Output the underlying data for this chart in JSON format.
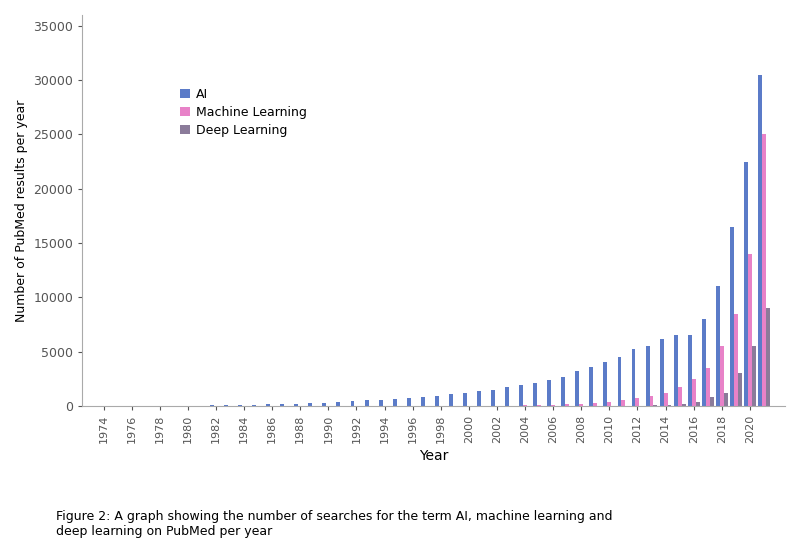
{
  "years": [
    1974,
    1975,
    1976,
    1977,
    1978,
    1979,
    1980,
    1981,
    1982,
    1983,
    1984,
    1985,
    1986,
    1987,
    1988,
    1989,
    1990,
    1991,
    1992,
    1993,
    1994,
    1995,
    1996,
    1997,
    1998,
    1999,
    2000,
    2001,
    2002,
    2003,
    2004,
    2005,
    2006,
    2007,
    2008,
    2009,
    2010,
    2011,
    2012,
    2013,
    2014,
    2015,
    2016,
    2017,
    2018,
    2019,
    2020,
    2021
  ],
  "AI": [
    5,
    8,
    10,
    12,
    15,
    20,
    30,
    35,
    50,
    60,
    80,
    100,
    130,
    160,
    200,
    250,
    300,
    380,
    450,
    500,
    580,
    650,
    750,
    850,
    950,
    1100,
    1200,
    1350,
    1500,
    1700,
    1900,
    2100,
    2400,
    2700,
    3200,
    3600,
    4000,
    4500,
    5200,
    5500,
    6200,
    6500,
    6500,
    8000,
    11000,
    16500,
    22500,
    30500
  ],
  "machine_learning": [
    0,
    0,
    0,
    0,
    0,
    0,
    0,
    0,
    0,
    0,
    0,
    0,
    0,
    0,
    0,
    0,
    0,
    0,
    0,
    0,
    0,
    0,
    0,
    0,
    0,
    0,
    0,
    0,
    0,
    0,
    50,
    80,
    100,
    150,
    200,
    280,
    400,
    500,
    700,
    900,
    1200,
    1700,
    2500,
    3500,
    5500,
    8500,
    14000,
    25000
  ],
  "deep_learning": [
    0,
    0,
    0,
    0,
    0,
    0,
    0,
    0,
    0,
    0,
    0,
    0,
    0,
    0,
    0,
    0,
    0,
    0,
    0,
    0,
    0,
    0,
    0,
    0,
    0,
    0,
    0,
    0,
    0,
    0,
    0,
    0,
    0,
    0,
    0,
    0,
    0,
    0,
    0,
    50,
    100,
    200,
    400,
    800,
    1200,
    3000,
    5500,
    9000
  ],
  "color_AI": "#5b7bc8",
  "color_ML": "#e882c8",
  "color_DL": "#8b7b9a",
  "ylabel": "Number of PubMed results per year",
  "xlabel": "Year",
  "ylim": [
    0,
    36000
  ],
  "yticks": [
    0,
    5000,
    10000,
    15000,
    20000,
    25000,
    30000,
    35000
  ],
  "caption": "Figure 2: A graph showing the number of searches for the term AI, machine learning and\ndeep learning on PubMed per year",
  "legend_labels": [
    "AI",
    "Machine Learning",
    "Deep Learning"
  ],
  "background_color": "#ffffff",
  "bar_width": 0.28
}
